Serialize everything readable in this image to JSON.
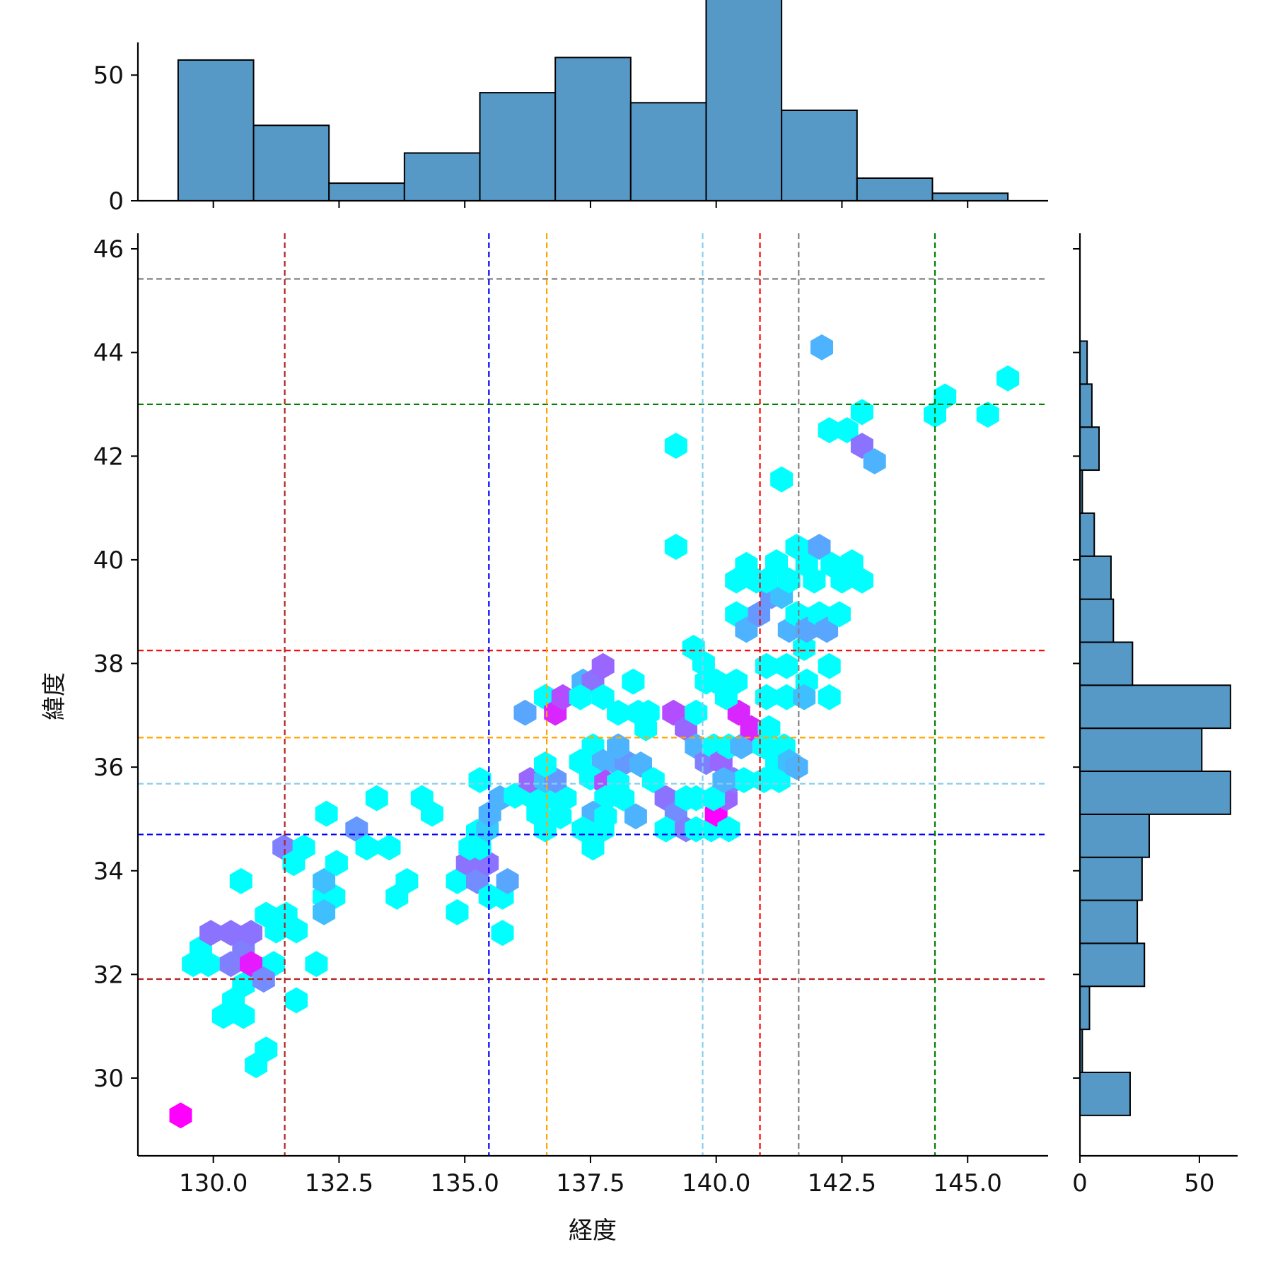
{
  "chart_data": {
    "type": "hexbin",
    "title": "",
    "xlabel": "経度",
    "ylabel": "緯度",
    "xlim": [
      128.5,
      146.6
    ],
    "ylim": [
      28.5,
      46.3
    ],
    "xticks": [
      {
        "value": 130.0,
        "label": "130.0"
      },
      {
        "value": 132.5,
        "label": "132.5"
      },
      {
        "value": 135.0,
        "label": "135.0"
      },
      {
        "value": 137.5,
        "label": "137.5"
      },
      {
        "value": 140.0,
        "label": "140.0"
      },
      {
        "value": 142.5,
        "label": "142.5"
      },
      {
        "value": 145.0,
        "label": "145.0"
      }
    ],
    "yticks": [
      {
        "value": 30,
        "label": "30"
      },
      {
        "value": 32,
        "label": "32"
      },
      {
        "value": 34,
        "label": "34"
      },
      {
        "value": 36,
        "label": "36"
      },
      {
        "value": 38,
        "label": "38"
      },
      {
        "value": 40,
        "label": "40"
      },
      {
        "value": 42,
        "label": "42"
      },
      {
        "value": 44,
        "label": "44"
      },
      {
        "value": 46,
        "label": "46"
      }
    ],
    "colormap": [
      "#00ffff",
      "#ff00ff"
    ],
    "hexbins": [
      [
        129.35,
        29.28,
        1.0
      ],
      [
        130.85,
        30.25,
        0.0
      ],
      [
        131.05,
        30.55,
        0.0
      ],
      [
        130.2,
        31.2,
        0.0
      ],
      [
        130.6,
        31.2,
        0.0
      ],
      [
        130.4,
        31.5,
        0.0
      ],
      [
        130.6,
        31.8,
        0.0
      ],
      [
        131.65,
        31.5,
        0.0
      ],
      [
        129.6,
        32.2,
        0.0
      ],
      [
        129.9,
        32.2,
        0.0
      ],
      [
        129.75,
        32.5,
        0.0
      ],
      [
        131.2,
        32.2,
        0.0
      ],
      [
        132.05,
        32.2,
        0.0
      ],
      [
        130.35,
        32.2,
        0.5
      ],
      [
        130.6,
        32.5,
        0.5
      ],
      [
        130.75,
        32.2,
        0.9
      ],
      [
        131.0,
        31.9,
        0.45
      ],
      [
        129.95,
        32.8,
        0.55
      ],
      [
        130.35,
        32.8,
        0.55
      ],
      [
        130.75,
        32.8,
        0.55
      ],
      [
        131.05,
        33.15,
        0.0
      ],
      [
        131.25,
        32.85,
        0.0
      ],
      [
        131.45,
        33.15,
        0.0
      ],
      [
        131.65,
        32.85,
        0.0
      ],
      [
        130.55,
        33.8,
        0.0
      ],
      [
        132.2,
        33.5,
        0.0
      ],
      [
        132.4,
        33.5,
        0.0
      ],
      [
        132.2,
        33.2,
        0.25
      ],
      [
        132.2,
        33.8,
        0.25
      ],
      [
        132.45,
        34.15,
        0.0
      ],
      [
        131.4,
        34.45,
        0.5
      ],
      [
        131.6,
        34.15,
        0.0
      ],
      [
        131.8,
        34.45,
        0.0
      ],
      [
        132.25,
        35.1,
        0.0
      ],
      [
        132.85,
        34.8,
        0.4
      ],
      [
        133.05,
        34.45,
        0.0
      ],
      [
        133.5,
        34.45,
        0.0
      ],
      [
        133.25,
        35.4,
        0.0
      ],
      [
        134.15,
        35.4,
        0.0
      ],
      [
        134.35,
        35.1,
        0.0
      ],
      [
        133.65,
        33.5,
        0.0
      ],
      [
        133.85,
        33.8,
        0.0
      ],
      [
        134.85,
        33.2,
        0.0
      ],
      [
        134.85,
        33.8,
        0.0
      ],
      [
        135.05,
        34.15,
        0.55
      ],
      [
        135.25,
        33.8,
        0.45
      ],
      [
        135.45,
        34.15,
        0.55
      ],
      [
        135.1,
        34.45,
        0.0
      ],
      [
        135.3,
        34.45,
        0.0
      ],
      [
        135.25,
        34.75,
        0.0
      ],
      [
        135.45,
        34.8,
        0.2
      ],
      [
        135.3,
        35.75,
        0.0
      ],
      [
        135.5,
        35.1,
        0.3
      ],
      [
        135.7,
        35.4,
        0.3
      ],
      [
        135.5,
        33.5,
        0.0
      ],
      [
        135.75,
        33.5,
        0.0
      ],
      [
        135.75,
        32.8,
        0.0
      ],
      [
        135.85,
        33.8,
        0.35
      ],
      [
        136.0,
        35.45,
        0.0
      ],
      [
        136.3,
        35.45,
        0.0
      ],
      [
        136.45,
        35.1,
        0.0
      ],
      [
        136.6,
        35.4,
        0.0
      ],
      [
        136.8,
        35.4,
        0.0
      ],
      [
        136.9,
        35.05,
        0.0
      ],
      [
        137.0,
        35.4,
        0.0
      ],
      [
        136.6,
        34.8,
        0.0
      ],
      [
        136.3,
        35.75,
        0.6
      ],
      [
        136.6,
        35.75,
        0.25
      ],
      [
        136.8,
        35.75,
        0.4
      ],
      [
        136.6,
        36.05,
        0.0
      ],
      [
        136.2,
        37.05,
        0.35
      ],
      [
        136.6,
        37.35,
        0.0
      ],
      [
        136.8,
        37.05,
        0.85
      ],
      [
        136.95,
        37.35,
        0.7
      ],
      [
        137.35,
        37.65,
        0.3
      ],
      [
        137.55,
        37.65,
        0.55
      ],
      [
        137.75,
        37.95,
        0.6
      ],
      [
        137.3,
        37.35,
        0.0
      ],
      [
        137.75,
        37.35,
        0.0
      ],
      [
        138.05,
        37.05,
        0.0
      ],
      [
        138.35,
        37.65,
        0.0
      ],
      [
        138.45,
        37.05,
        0.0
      ],
      [
        138.65,
        37.05,
        0.0
      ],
      [
        138.6,
        36.75,
        0.0
      ],
      [
        137.55,
        36.4,
        0.0
      ],
      [
        137.75,
        36.1,
        0.3
      ],
      [
        138.0,
        36.1,
        0.3
      ],
      [
        138.2,
        36.1,
        0.4
      ],
      [
        138.05,
        36.4,
        0.3
      ],
      [
        137.3,
        36.1,
        0.0
      ],
      [
        137.5,
        35.8,
        0.0
      ],
      [
        137.8,
        35.7,
        0.7
      ],
      [
        138.05,
        35.7,
        0.0
      ],
      [
        138.15,
        35.4,
        0.0
      ],
      [
        137.8,
        35.4,
        0.0
      ],
      [
        137.55,
        35.1,
        0.3
      ],
      [
        137.8,
        35.05,
        0.0
      ],
      [
        138.4,
        35.05,
        0.3
      ],
      [
        137.35,
        34.8,
        0.0
      ],
      [
        137.55,
        34.45,
        0.0
      ],
      [
        137.75,
        34.8,
        0.0
      ],
      [
        138.5,
        36.05,
        0.3
      ],
      [
        138.75,
        35.75,
        0.0
      ],
      [
        139.0,
        35.4,
        0.55
      ],
      [
        139.2,
        35.1,
        0.45
      ],
      [
        139.4,
        35.4,
        0.0
      ],
      [
        139.6,
        35.4,
        0.0
      ],
      [
        139.0,
        34.8,
        0.0
      ],
      [
        139.4,
        34.8,
        0.5
      ],
      [
        139.6,
        34.8,
        0.0
      ],
      [
        139.9,
        34.8,
        0.0
      ],
      [
        140.0,
        35.1,
        1.0
      ],
      [
        140.25,
        34.8,
        0.0
      ],
      [
        140.2,
        35.4,
        0.6
      ],
      [
        139.95,
        35.4,
        0.0
      ],
      [
        139.15,
        37.05,
        0.7
      ],
      [
        139.4,
        36.75,
        0.6
      ],
      [
        139.6,
        37.05,
        0.0
      ],
      [
        139.6,
        36.4,
        0.3
      ],
      [
        139.8,
        36.1,
        0.5
      ],
      [
        139.95,
        36.4,
        0.0
      ],
      [
        140.1,
        36.1,
        0.6
      ],
      [
        140.25,
        36.4,
        0.0
      ],
      [
        140.35,
        35.75,
        0.5
      ],
      [
        140.5,
        36.4,
        0.3
      ],
      [
        140.55,
        35.75,
        0.0
      ],
      [
        140.15,
        35.75,
        0.3
      ],
      [
        140.45,
        37.05,
        0.85
      ],
      [
        140.7,
        36.75,
        0.85
      ],
      [
        140.95,
        36.4,
        0.0
      ],
      [
        141.05,
        36.75,
        0.0
      ],
      [
        140.95,
        35.75,
        0.0
      ],
      [
        141.2,
        36.05,
        0.0
      ],
      [
        141.35,
        36.4,
        0.0
      ],
      [
        141.25,
        35.75,
        0.0
      ],
      [
        141.45,
        36.1,
        0.25
      ],
      [
        141.6,
        36.0,
        0.3
      ],
      [
        139.55,
        38.3,
        0.0
      ],
      [
        139.75,
        38.0,
        0.0
      ],
      [
        139.8,
        37.65,
        0.0
      ],
      [
        140.0,
        37.65,
        0.0
      ],
      [
        140.2,
        37.35,
        0.0
      ],
      [
        140.4,
        37.65,
        0.0
      ],
      [
        141.0,
        37.95,
        0.0
      ],
      [
        141.4,
        37.95,
        0.0
      ],
      [
        141.0,
        37.35,
        0.0
      ],
      [
        141.4,
        37.35,
        0.0
      ],
      [
        141.75,
        38.3,
        0.0
      ],
      [
        141.8,
        37.65,
        0.0
      ],
      [
        141.75,
        37.35,
        0.25
      ],
      [
        142.25,
        37.35,
        0.0
      ],
      [
        142.25,
        37.95,
        0.0
      ],
      [
        140.4,
        38.95,
        0.0
      ],
      [
        140.6,
        38.65,
        0.3
      ],
      [
        140.85,
        38.95,
        0.4
      ],
      [
        141.1,
        39.3,
        0.4
      ],
      [
        141.3,
        39.3,
        0.25
      ],
      [
        141.45,
        38.65,
        0.3
      ],
      [
        141.6,
        38.95,
        0.0
      ],
      [
        141.8,
        38.65,
        0.35
      ],
      [
        142.05,
        38.95,
        0.0
      ],
      [
        142.2,
        38.65,
        0.35
      ],
      [
        142.45,
        38.95,
        0.0
      ],
      [
        140.4,
        39.6,
        0.0
      ],
      [
        140.6,
        39.9,
        0.0
      ],
      [
        140.8,
        39.6,
        0.0
      ],
      [
        141.0,
        39.6,
        0.0
      ],
      [
        141.2,
        39.95,
        0.0
      ],
      [
        141.45,
        39.6,
        0.0
      ],
      [
        141.6,
        40.25,
        0.0
      ],
      [
        141.8,
        39.9,
        0.0
      ],
      [
        142.05,
        40.25,
        0.35
      ],
      [
        142.3,
        39.9,
        0.0
      ],
      [
        142.5,
        39.6,
        0.0
      ],
      [
        142.7,
        39.95,
        0.0
      ],
      [
        142.9,
        39.6,
        0.0
      ],
      [
        141.95,
        39.6,
        0.0
      ],
      [
        139.2,
        40.25,
        0.0
      ],
      [
        139.2,
        42.2,
        0.0
      ],
      [
        141.3,
        41.55,
        0.0
      ],
      [
        142.1,
        44.1,
        0.3
      ],
      [
        142.25,
        42.5,
        0.0
      ],
      [
        142.6,
        42.5,
        0.0
      ],
      [
        142.9,
        42.85,
        0.0
      ],
      [
        142.9,
        42.2,
        0.55
      ],
      [
        143.15,
        41.9,
        0.3
      ],
      [
        144.35,
        42.8,
        0.0
      ],
      [
        144.55,
        43.15,
        0.0
      ],
      [
        145.4,
        42.8,
        0.0
      ],
      [
        145.8,
        43.5,
        0.0
      ]
    ],
    "hlines": [
      {
        "y": 45.42,
        "color": "#808080"
      },
      {
        "y": 43.0,
        "color": "#008000"
      },
      {
        "y": 38.25,
        "color": "#ff0000"
      },
      {
        "y": 36.57,
        "color": "#ffa500"
      },
      {
        "y": 35.68,
        "color": "#87ceeb"
      },
      {
        "y": 34.7,
        "color": "#0000ff"
      },
      {
        "y": 31.91,
        "color": "#b22222"
      }
    ],
    "vlines": [
      {
        "x": 131.42,
        "color": "#b22222"
      },
      {
        "x": 135.48,
        "color": "#0000ff"
      },
      {
        "x": 136.63,
        "color": "#ffa500"
      },
      {
        "x": 139.73,
        "color": "#87ceeb"
      },
      {
        "x": 140.87,
        "color": "#ff0000"
      },
      {
        "x": 141.64,
        "color": "#808080"
      },
      {
        "x": 144.35,
        "color": "#008000"
      }
    ],
    "marginal_x": {
      "ylim": [
        0,
        63
      ],
      "yticks": [
        {
          "value": 0,
          "label": "0"
        },
        {
          "value": 50,
          "label": "50"
        }
      ],
      "bin_edges": [
        129.3,
        130.8,
        132.3,
        133.8,
        135.3,
        136.8,
        138.3,
        139.8,
        141.3,
        142.8,
        144.3,
        145.8
      ],
      "counts": [
        56,
        30,
        7,
        19,
        43,
        57,
        39,
        84,
        36,
        9,
        3
      ],
      "color": "#5699c6"
    },
    "marginal_y": {
      "xlim": [
        0,
        66
      ],
      "xticks": [
        {
          "value": 0,
          "label": "0"
        },
        {
          "value": 50,
          "label": "50"
        }
      ],
      "bin_edges": [
        29.28,
        30.11,
        30.94,
        31.77,
        32.6,
        33.43,
        34.26,
        35.09,
        35.92,
        36.75,
        37.58,
        38.41,
        39.24,
        40.07,
        40.9,
        41.73,
        42.56,
        43.39,
        44.22
      ],
      "counts": [
        21,
        1,
        4,
        27,
        24,
        26,
        29,
        63,
        51,
        63,
        22,
        14,
        13,
        6,
        1,
        8,
        5,
        3
      ],
      "color": "#5699c6"
    }
  }
}
